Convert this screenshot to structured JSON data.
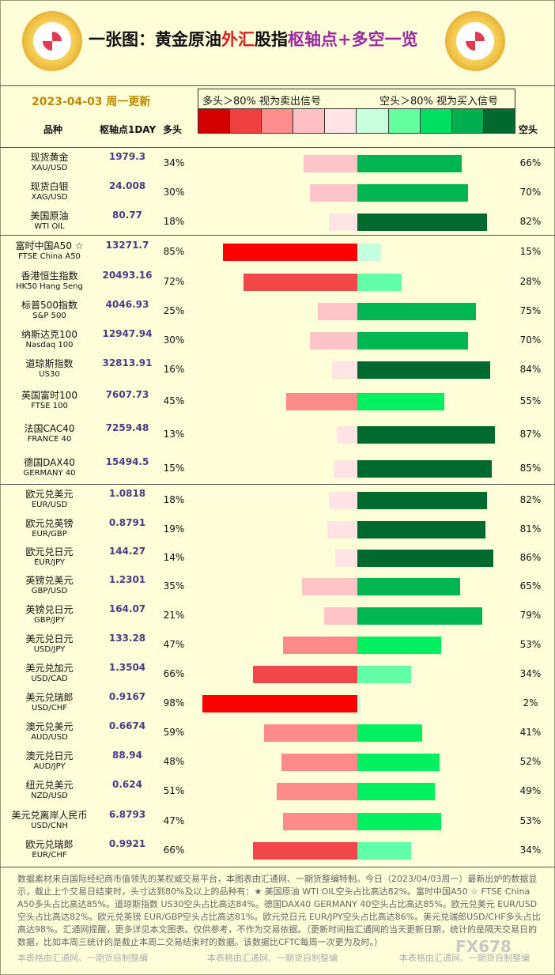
{
  "header": {
    "title_a": "一张图：黄金原油",
    "title_b": "外汇",
    "title_c": "股指",
    "title_d": "枢轴点",
    "title_e": "+多空一览",
    "date": "2023-04-03 周一更新",
    "legend_left": "多头＞80% 视为卖出信号",
    "legend_right": "空头＞80% 视为买入信号",
    "col_product": "品种",
    "col_pivot": "枢轴点1DAY",
    "col_bull": "多头",
    "col_bear": "空头"
  },
  "colors": {
    "swatches": [
      "#d40000",
      "#f04040",
      "#ff8c8c",
      "#ffc0c4",
      "#ffe4e4",
      "#c8ffdc",
      "#66ffa0",
      "#00e060",
      "#00b050",
      "#006a2e"
    ]
  },
  "chart_data": {
    "type": "bar",
    "rows": [
      {
        "cn": "现货黄金",
        "en": "XAU/USD",
        "pivot": "1979.3",
        "long": 34,
        "short": 66,
        "long_label": "34%",
        "short_label": "66%"
      },
      {
        "cn": "现货白银",
        "en": "XAG/USD",
        "pivot": "24.008",
        "long": 30,
        "short": 70,
        "long_label": "30%",
        "short_label": "70%"
      },
      {
        "cn": "美国原油",
        "en": "WTI OIL",
        "pivot": "80.77",
        "long": 18,
        "short": 82,
        "long_label": "18%",
        "short_label": "82%"
      },
      {
        "cn": "富时中国A50 ☆",
        "en": "FTSE China A50",
        "pivot": "13271.7",
        "long": 85,
        "short": 15,
        "long_label": "85%",
        "short_label": "15%"
      },
      {
        "cn": "香港恒生指数",
        "en": "HK50 Hang Seng",
        "pivot": "20493.16",
        "long": 72,
        "short": 28,
        "long_label": "72%",
        "short_label": "28%"
      },
      {
        "cn": "标普500指数",
        "en": "S&P 500",
        "pivot": "4046.93",
        "long": 25,
        "short": 75,
        "long_label": "25%",
        "short_label": "75%"
      },
      {
        "cn": "纳斯达克100",
        "en": "Nasdaq 100",
        "pivot": "12947.94",
        "long": 30,
        "short": 70,
        "long_label": "30%",
        "short_label": "70%"
      },
      {
        "cn": "道琼斯指数",
        "en": "US30",
        "pivot": "32813.91",
        "long": 16,
        "short": 84,
        "long_label": "16%",
        "short_label": "84%"
      },
      {
        "cn": "英国富时100",
        "en": "FTSE 100",
        "pivot": "7607.73",
        "long": 45,
        "short": 55,
        "long_label": "45%",
        "short_label": "55%"
      },
      {
        "cn": "法国CAC40",
        "en": "FRANCE 40",
        "pivot": "7259.48",
        "long": 13,
        "short": 87,
        "long_label": "13%",
        "short_label": "87%"
      },
      {
        "cn": "德国DAX40",
        "en": "GERMANY 40",
        "pivot": "15494.5",
        "long": 15,
        "short": 85,
        "long_label": "15%",
        "short_label": "85%"
      },
      {
        "cn": "欧元兑美元",
        "en": "EUR/USD",
        "pivot": "1.0818",
        "long": 18,
        "short": 82,
        "long_label": "18%",
        "short_label": "82%"
      },
      {
        "cn": "欧元兑英镑",
        "en": "EUR/GBP",
        "pivot": "0.8791",
        "long": 19,
        "short": 81,
        "long_label": "19%",
        "short_label": "81%"
      },
      {
        "cn": "欧元兑日元",
        "en": "EUR/JPY",
        "pivot": "144.27",
        "long": 14,
        "short": 86,
        "long_label": "14%",
        "short_label": "86%"
      },
      {
        "cn": "英镑兑美元",
        "en": "GBP/USD",
        "pivot": "1.2301",
        "long": 35,
        "short": 65,
        "long_label": "35%",
        "short_label": "65%"
      },
      {
        "cn": "英镑兑日元",
        "en": "GBP/JPY",
        "pivot": "164.07",
        "long": 21,
        "short": 79,
        "long_label": "21%",
        "short_label": "79%"
      },
      {
        "cn": "美元兑日元",
        "en": "USD/JPY",
        "pivot": "133.28",
        "long": 47,
        "short": 53,
        "long_label": "47%",
        "short_label": "53%"
      },
      {
        "cn": "美元兑加元",
        "en": "USD/CAD",
        "pivot": "1.3504",
        "long": 66,
        "short": 34,
        "long_label": "66%",
        "short_label": "34%"
      },
      {
        "cn": "美元兑瑞郎",
        "en": "USD/CHF",
        "pivot": "0.9167",
        "long": 98,
        "short": 2,
        "long_label": "98%",
        "short_label": "2%"
      },
      {
        "cn": "澳元兑美元",
        "en": "AUD/USD",
        "pivot": "0.6674",
        "long": 59,
        "short": 41,
        "long_label": "59%",
        "short_label": "41%"
      },
      {
        "cn": "澳元兑日元",
        "en": "AUD/JPY",
        "pivot": "88.94",
        "long": 48,
        "short": 52,
        "long_label": "48%",
        "short_label": "52%"
      },
      {
        "cn": "纽元兑美元",
        "en": "NZD/USD",
        "pivot": "0.624",
        "long": 51,
        "short": 49,
        "long_label": "51%",
        "short_label": "49%"
      },
      {
        "cn": "美元兑离岸人民币",
        "en": "USD/CNH",
        "pivot": "6.8793",
        "long": 47,
        "short": 53,
        "long_label": "47%",
        "short_label": "53%"
      },
      {
        "cn": "欧元兑瑞郎",
        "en": "EUR/CHF",
        "pivot": "0.9921",
        "long": 66,
        "short": 34,
        "long_label": "66%",
        "short_label": "34%"
      }
    ]
  },
  "footer": {
    "text": "数据素材来自国际经纪商市值领先的某权威交易平台，本图表由汇通网、一期货整编特制。今日（2023/04/03周一）最新出炉的数据显示，截止上个交易日结束时，头寸达到80%及以上的品种有：★ 美国原油 WTI OIL空头占比高达82%。富时中国A50 ☆ FTSE China A50多头占比高达85%。道琼斯指数 US30空头占比高达84%。德国DAX40 GERMANY 40空头占比高达85%。欧元兑美元 EUR/USD空头占比高达82%。欧元兑英镑 EUR/GBP空头占比高达81%。欧元兑日元 EUR/JPY空头占比高达86%。美元兑瑞郎USD/CHF多头占比高达98%。汇通网提醒，更多详见本文图表。仅供参考，不作为交易依据。（更新时间指汇通网的当天更新日期，统计的是隔天交易日的数据，比如本周三统计的是截止本周二交易结束时的数据。该数据比CFTC每周一次更为及时。）",
    "watermark": "本表格由汇通网、一期货自制整编",
    "brand": "FX678"
  }
}
